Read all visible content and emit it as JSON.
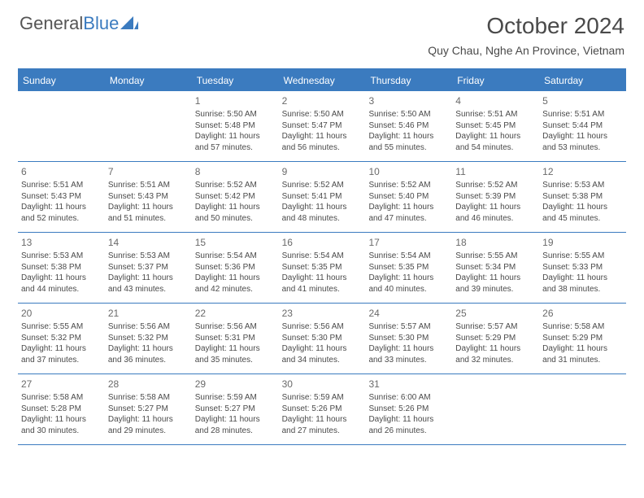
{
  "logo": {
    "text1": "General",
    "text2": "Blue"
  },
  "title": "October 2024",
  "location": "Quy Chau, Nghe An Province, Vietnam",
  "colors": {
    "accent": "#3b7bbf",
    "text": "#4a4a4a",
    "background": "#ffffff"
  },
  "dayNames": [
    "Sunday",
    "Monday",
    "Tuesday",
    "Wednesday",
    "Thursday",
    "Friday",
    "Saturday"
  ],
  "weeks": [
    [
      {
        "num": "",
        "sunrise": "",
        "sunset": "",
        "daylight1": "",
        "daylight2": ""
      },
      {
        "num": "",
        "sunrise": "",
        "sunset": "",
        "daylight1": "",
        "daylight2": ""
      },
      {
        "num": "1",
        "sunrise": "Sunrise: 5:50 AM",
        "sunset": "Sunset: 5:48 PM",
        "daylight1": "Daylight: 11 hours",
        "daylight2": "and 57 minutes."
      },
      {
        "num": "2",
        "sunrise": "Sunrise: 5:50 AM",
        "sunset": "Sunset: 5:47 PM",
        "daylight1": "Daylight: 11 hours",
        "daylight2": "and 56 minutes."
      },
      {
        "num": "3",
        "sunrise": "Sunrise: 5:50 AM",
        "sunset": "Sunset: 5:46 PM",
        "daylight1": "Daylight: 11 hours",
        "daylight2": "and 55 minutes."
      },
      {
        "num": "4",
        "sunrise": "Sunrise: 5:51 AM",
        "sunset": "Sunset: 5:45 PM",
        "daylight1": "Daylight: 11 hours",
        "daylight2": "and 54 minutes."
      },
      {
        "num": "5",
        "sunrise": "Sunrise: 5:51 AM",
        "sunset": "Sunset: 5:44 PM",
        "daylight1": "Daylight: 11 hours",
        "daylight2": "and 53 minutes."
      }
    ],
    [
      {
        "num": "6",
        "sunrise": "Sunrise: 5:51 AM",
        "sunset": "Sunset: 5:43 PM",
        "daylight1": "Daylight: 11 hours",
        "daylight2": "and 52 minutes."
      },
      {
        "num": "7",
        "sunrise": "Sunrise: 5:51 AM",
        "sunset": "Sunset: 5:43 PM",
        "daylight1": "Daylight: 11 hours",
        "daylight2": "and 51 minutes."
      },
      {
        "num": "8",
        "sunrise": "Sunrise: 5:52 AM",
        "sunset": "Sunset: 5:42 PM",
        "daylight1": "Daylight: 11 hours",
        "daylight2": "and 50 minutes."
      },
      {
        "num": "9",
        "sunrise": "Sunrise: 5:52 AM",
        "sunset": "Sunset: 5:41 PM",
        "daylight1": "Daylight: 11 hours",
        "daylight2": "and 48 minutes."
      },
      {
        "num": "10",
        "sunrise": "Sunrise: 5:52 AM",
        "sunset": "Sunset: 5:40 PM",
        "daylight1": "Daylight: 11 hours",
        "daylight2": "and 47 minutes."
      },
      {
        "num": "11",
        "sunrise": "Sunrise: 5:52 AM",
        "sunset": "Sunset: 5:39 PM",
        "daylight1": "Daylight: 11 hours",
        "daylight2": "and 46 minutes."
      },
      {
        "num": "12",
        "sunrise": "Sunrise: 5:53 AM",
        "sunset": "Sunset: 5:38 PM",
        "daylight1": "Daylight: 11 hours",
        "daylight2": "and 45 minutes."
      }
    ],
    [
      {
        "num": "13",
        "sunrise": "Sunrise: 5:53 AM",
        "sunset": "Sunset: 5:38 PM",
        "daylight1": "Daylight: 11 hours",
        "daylight2": "and 44 minutes."
      },
      {
        "num": "14",
        "sunrise": "Sunrise: 5:53 AM",
        "sunset": "Sunset: 5:37 PM",
        "daylight1": "Daylight: 11 hours",
        "daylight2": "and 43 minutes."
      },
      {
        "num": "15",
        "sunrise": "Sunrise: 5:54 AM",
        "sunset": "Sunset: 5:36 PM",
        "daylight1": "Daylight: 11 hours",
        "daylight2": "and 42 minutes."
      },
      {
        "num": "16",
        "sunrise": "Sunrise: 5:54 AM",
        "sunset": "Sunset: 5:35 PM",
        "daylight1": "Daylight: 11 hours",
        "daylight2": "and 41 minutes."
      },
      {
        "num": "17",
        "sunrise": "Sunrise: 5:54 AM",
        "sunset": "Sunset: 5:35 PM",
        "daylight1": "Daylight: 11 hours",
        "daylight2": "and 40 minutes."
      },
      {
        "num": "18",
        "sunrise": "Sunrise: 5:55 AM",
        "sunset": "Sunset: 5:34 PM",
        "daylight1": "Daylight: 11 hours",
        "daylight2": "and 39 minutes."
      },
      {
        "num": "19",
        "sunrise": "Sunrise: 5:55 AM",
        "sunset": "Sunset: 5:33 PM",
        "daylight1": "Daylight: 11 hours",
        "daylight2": "and 38 minutes."
      }
    ],
    [
      {
        "num": "20",
        "sunrise": "Sunrise: 5:55 AM",
        "sunset": "Sunset: 5:32 PM",
        "daylight1": "Daylight: 11 hours",
        "daylight2": "and 37 minutes."
      },
      {
        "num": "21",
        "sunrise": "Sunrise: 5:56 AM",
        "sunset": "Sunset: 5:32 PM",
        "daylight1": "Daylight: 11 hours",
        "daylight2": "and 36 minutes."
      },
      {
        "num": "22",
        "sunrise": "Sunrise: 5:56 AM",
        "sunset": "Sunset: 5:31 PM",
        "daylight1": "Daylight: 11 hours",
        "daylight2": "and 35 minutes."
      },
      {
        "num": "23",
        "sunrise": "Sunrise: 5:56 AM",
        "sunset": "Sunset: 5:30 PM",
        "daylight1": "Daylight: 11 hours",
        "daylight2": "and 34 minutes."
      },
      {
        "num": "24",
        "sunrise": "Sunrise: 5:57 AM",
        "sunset": "Sunset: 5:30 PM",
        "daylight1": "Daylight: 11 hours",
        "daylight2": "and 33 minutes."
      },
      {
        "num": "25",
        "sunrise": "Sunrise: 5:57 AM",
        "sunset": "Sunset: 5:29 PM",
        "daylight1": "Daylight: 11 hours",
        "daylight2": "and 32 minutes."
      },
      {
        "num": "26",
        "sunrise": "Sunrise: 5:58 AM",
        "sunset": "Sunset: 5:29 PM",
        "daylight1": "Daylight: 11 hours",
        "daylight2": "and 31 minutes."
      }
    ],
    [
      {
        "num": "27",
        "sunrise": "Sunrise: 5:58 AM",
        "sunset": "Sunset: 5:28 PM",
        "daylight1": "Daylight: 11 hours",
        "daylight2": "and 30 minutes."
      },
      {
        "num": "28",
        "sunrise": "Sunrise: 5:58 AM",
        "sunset": "Sunset: 5:27 PM",
        "daylight1": "Daylight: 11 hours",
        "daylight2": "and 29 minutes."
      },
      {
        "num": "29",
        "sunrise": "Sunrise: 5:59 AM",
        "sunset": "Sunset: 5:27 PM",
        "daylight1": "Daylight: 11 hours",
        "daylight2": "and 28 minutes."
      },
      {
        "num": "30",
        "sunrise": "Sunrise: 5:59 AM",
        "sunset": "Sunset: 5:26 PM",
        "daylight1": "Daylight: 11 hours",
        "daylight2": "and 27 minutes."
      },
      {
        "num": "31",
        "sunrise": "Sunrise: 6:00 AM",
        "sunset": "Sunset: 5:26 PM",
        "daylight1": "Daylight: 11 hours",
        "daylight2": "and 26 minutes."
      },
      {
        "num": "",
        "sunrise": "",
        "sunset": "",
        "daylight1": "",
        "daylight2": ""
      },
      {
        "num": "",
        "sunrise": "",
        "sunset": "",
        "daylight1": "",
        "daylight2": ""
      }
    ]
  ]
}
